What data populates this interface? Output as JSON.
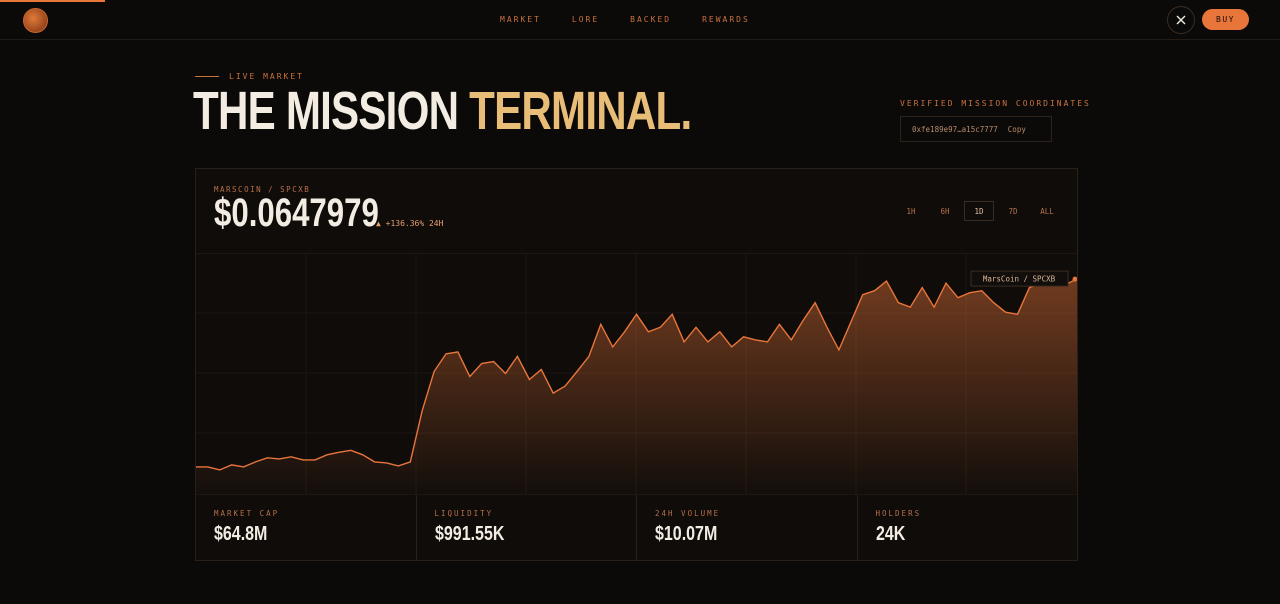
{
  "nav": {
    "items": [
      "MARKET",
      "LORE",
      "BACKED",
      "REWARDS"
    ],
    "buy": "BUY"
  },
  "hero": {
    "eyebrow": "LIVE MARKET",
    "title_main": "THE MISSION",
    "title_accent": "TERMINAL.",
    "coords_label": "VERIFIED MISSION COORDINATES",
    "address": "0xfe189e97…a15c7777",
    "copy": "Copy"
  },
  "market": {
    "pair": "MARSCOIN / SPCXB",
    "price": "$0.0647979",
    "change": "+136.36% 24H",
    "ranges": [
      "1H",
      "6H",
      "1D",
      "7D",
      "ALL"
    ],
    "active_range": "1D"
  },
  "chart_data": {
    "type": "line",
    "tooltip": "MarsCoin / SPCXB",
    "color": "#e8753a",
    "ylim": [
      0.022,
      0.07
    ],
    "values": [
      0.0274,
      0.0274,
      0.0268,
      0.0278,
      0.0274,
      0.0284,
      0.0292,
      0.029,
      0.0294,
      0.0288,
      0.0288,
      0.0298,
      0.0303,
      0.0307,
      0.0298,
      0.0284,
      0.0282,
      0.0276,
      0.0284,
      0.0386,
      0.0464,
      0.0499,
      0.0503,
      0.0454,
      0.048,
      0.0484,
      0.046,
      0.0494,
      0.0448,
      0.0468,
      0.0421,
      0.0435,
      0.0464,
      0.0494,
      0.0558,
      0.0513,
      0.0543,
      0.0578,
      0.0543,
      0.0552,
      0.0578,
      0.0523,
      0.0552,
      0.0523,
      0.0543,
      0.0513,
      0.0533,
      0.0527,
      0.0523,
      0.0558,
      0.0527,
      0.0566,
      0.0601,
      0.0552,
      0.0507,
      0.0562,
      0.0617,
      0.0625,
      0.0644,
      0.0601,
      0.0592,
      0.0631,
      0.0592,
      0.064,
      0.0611,
      0.0621,
      0.0625,
      0.0601,
      0.0582,
      0.0578,
      0.0631,
      0.064,
      0.065,
      0.0637,
      0.0648
    ]
  },
  "stats": [
    {
      "label": "MARKET CAP",
      "value": "$64.8M"
    },
    {
      "label": "LIQUIDITY",
      "value": "$991.55K"
    },
    {
      "label": "24H VOLUME",
      "value": "$10.07M"
    },
    {
      "label": "HOLDERS",
      "value": "24K"
    }
  ]
}
